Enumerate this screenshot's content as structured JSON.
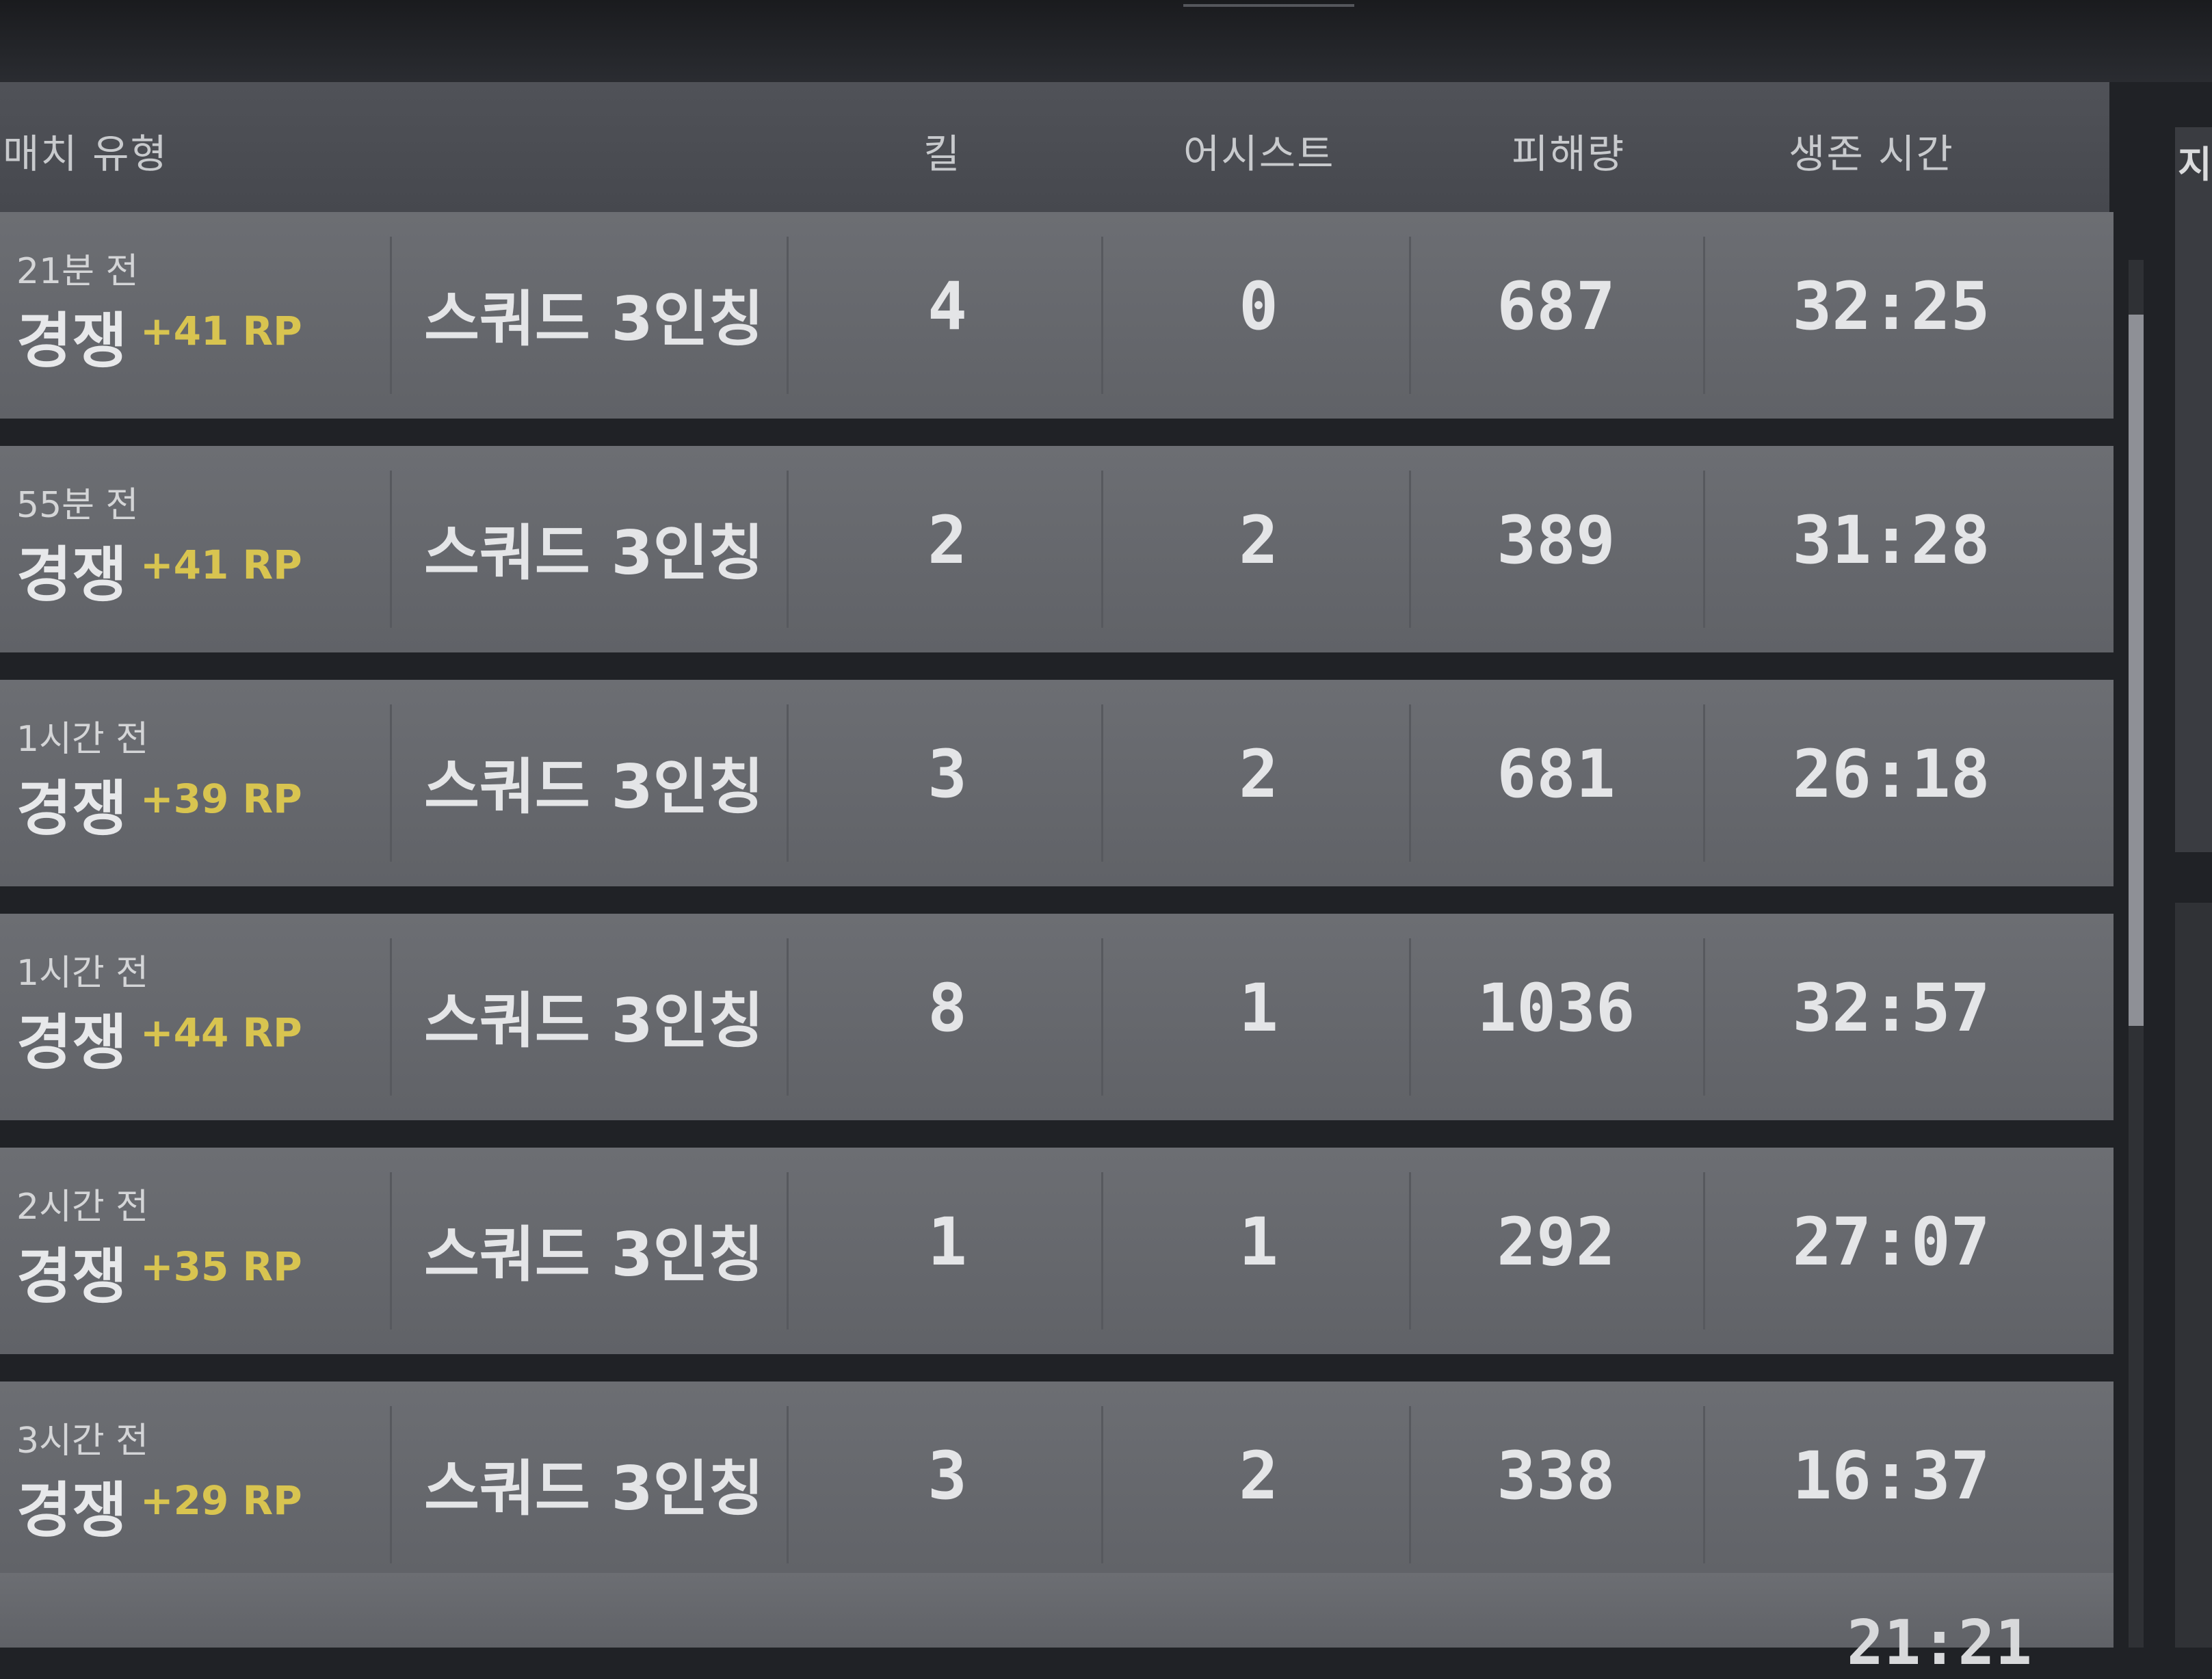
{
  "header": {
    "match_type": "매치 유형",
    "kills": "킬",
    "assists": "어시스트",
    "damage": "피해량",
    "survival": "생존 시간"
  },
  "right_panel": {
    "label_partial": "지약"
  },
  "matches": [
    {
      "time": "21분 전",
      "mode": "경쟁",
      "rp": "+41 RP",
      "type": "스쿼드 3인칭",
      "kills": "4",
      "assists": "0",
      "damage": "687",
      "survival": "32:25"
    },
    {
      "time": "55분 전",
      "mode": "경쟁",
      "rp": "+41 RP",
      "type": "스쿼드 3인칭",
      "kills": "2",
      "assists": "2",
      "damage": "389",
      "survival": "31:28"
    },
    {
      "time": "1시간 전",
      "mode": "경쟁",
      "rp": "+39 RP",
      "type": "스쿼드 3인칭",
      "kills": "3",
      "assists": "2",
      "damage": "681",
      "survival": "26:18"
    },
    {
      "time": "1시간 전",
      "mode": "경쟁",
      "rp": "+44 RP",
      "type": "스쿼드 3인칭",
      "kills": "8",
      "assists": "1",
      "damage": "1036",
      "survival": "32:57"
    },
    {
      "time": "2시간 전",
      "mode": "경쟁",
      "rp": "+35 RP",
      "type": "스쿼드 3인칭",
      "kills": "1",
      "assists": "1",
      "damage": "292",
      "survival": "27:07"
    },
    {
      "time": "3시간 전",
      "mode": "경쟁",
      "rp": "+29 RP",
      "type": "스쿼드 3인칭",
      "kills": "3",
      "assists": "2",
      "damage": "338",
      "survival": "16:37"
    }
  ],
  "partial_row": {
    "survival": "21:21"
  }
}
